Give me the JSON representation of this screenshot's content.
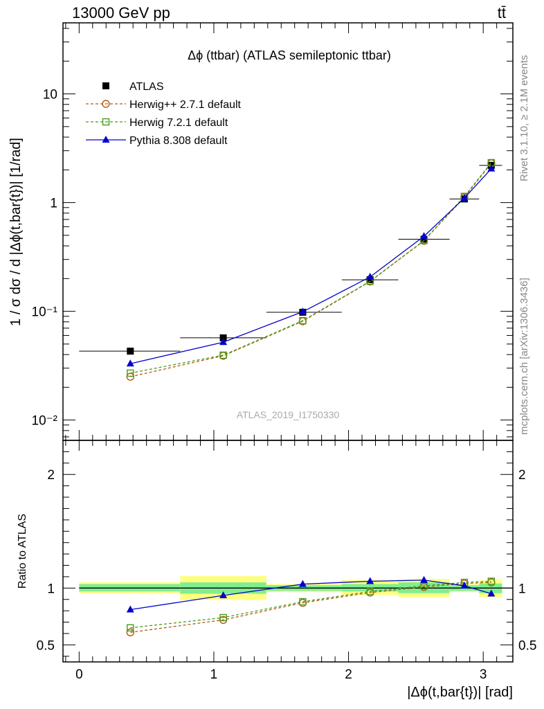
{
  "header": {
    "left": "13000 GeV pp",
    "right": "tt̄"
  },
  "side_text": {
    "rivet": "Rivet 3.1.10, ≥ 2.1M events",
    "site": "mcplots.cern.ch [arXiv:1306.3436]"
  },
  "chart_data": [
    {
      "type": "scatter",
      "title": "Δϕ (ttbar) (ATLAS semileptonic ttbar)",
      "watermark": "ATLAS_2019_I1750330",
      "xlabel": "|Δϕ(t,bar{t})| [rad]",
      "ylabel": "1 / σ dσ / d |Δϕ(t,bar{t})| [1/rad]",
      "yscale": "log",
      "xlim": [
        -0.12,
        3.22
      ],
      "ylim": [
        0.0065,
        45
      ],
      "x_ticks": [
        0,
        1,
        2,
        3
      ],
      "y_ticks": [
        {
          "value": 0.01,
          "label": "10⁻²"
        },
        {
          "value": 0.1,
          "label": "10⁻¹"
        },
        {
          "value": 1,
          "label": "1"
        },
        {
          "value": 10,
          "label": "10"
        }
      ],
      "legend_position": "top-left",
      "x": [
        0.38,
        1.07,
        1.66,
        2.16,
        2.56,
        2.86,
        3.06
      ],
      "series": [
        {
          "name": "ATLAS",
          "color": "#000000",
          "marker": "filled-square",
          "values": [
            0.043,
            0.057,
            0.098,
            0.195,
            0.46,
            1.08,
            2.2
          ],
          "xerr": [
            [
              0,
              0.75
            ],
            [
              0.75,
              1.39
            ],
            [
              1.39,
              1.95
            ],
            [
              1.95,
              2.37
            ],
            [
              2.37,
              2.75
            ],
            [
              2.75,
              2.97
            ],
            [
              2.97,
              3.14
            ]
          ]
        },
        {
          "name": "Herwig++ 2.7.1 default",
          "color": "#b05a10",
          "marker": "open-circle",
          "dash": true,
          "values": [
            0.025,
            0.039,
            0.081,
            0.188,
            0.445,
            1.12,
            2.3
          ]
        },
        {
          "name": "Herwig 7.2.1 default",
          "color": "#4a9a18",
          "marker": "open-square",
          "dash": true,
          "values": [
            0.027,
            0.0395,
            0.082,
            0.189,
            0.448,
            1.14,
            2.33
          ]
        },
        {
          "name": "Pythia 8.308 default",
          "color": "#0000cc",
          "marker": "filled-triangle",
          "values": [
            0.033,
            0.052,
            0.099,
            0.207,
            0.49,
            1.1,
            2.05
          ]
        }
      ]
    },
    {
      "type": "line",
      "ylabel": "Ratio to ATLAS",
      "xlim": [
        -0.12,
        3.22
      ],
      "ylim": [
        0.35,
        2.3
      ],
      "x_ticks": [
        0,
        1,
        2,
        3
      ],
      "y_ticks": [
        {
          "value": 0.5,
          "label": "0.5"
        },
        {
          "value": 1,
          "label": "1"
        },
        {
          "value": 2,
          "label": "2"
        }
      ],
      "bands": [
        {
          "x": [
            0,
            0.75
          ],
          "inner": [
            0.97,
            1.035
          ],
          "outer": [
            0.955,
            1.05
          ]
        },
        {
          "x": [
            0.75,
            1.39
          ],
          "inner": [
            0.95,
            1.05
          ],
          "outer": [
            0.895,
            1.105
          ]
        },
        {
          "x": [
            1.39,
            1.95
          ],
          "inner": [
            0.975,
            1.025
          ],
          "outer": [
            0.965,
            1.035
          ]
        },
        {
          "x": [
            1.95,
            2.37
          ],
          "inner": [
            0.97,
            1.035
          ],
          "outer": [
            0.94,
            1.07
          ]
        },
        {
          "x": [
            2.37,
            2.75
          ],
          "inner": [
            0.955,
            1.05
          ],
          "outer": [
            0.92,
            1.08
          ]
        },
        {
          "x": [
            2.75,
            2.97
          ],
          "inner": [
            0.975,
            1.025
          ],
          "outer": [
            0.965,
            1.035
          ]
        },
        {
          "x": [
            2.97,
            3.14
          ],
          "inner": [
            0.955,
            1.04
          ],
          "outer": [
            0.92,
            1.07
          ]
        }
      ],
      "x": [
        0.38,
        1.07,
        1.66,
        2.16,
        2.56,
        2.86,
        3.06
      ],
      "series": [
        {
          "name": "Herwig++ 2.7.1 default",
          "color": "#b05a10",
          "marker": "open-circle",
          "dash": true,
          "values": [
            0.61,
            0.72,
            0.87,
            0.96,
            1.01,
            1.04,
            1.05
          ]
        },
        {
          "name": "Herwig 7.2.1 default",
          "color": "#4a9a18",
          "marker": "open-square",
          "dash": true,
          "values": [
            0.65,
            0.74,
            0.88,
            0.97,
            1.02,
            1.05,
            1.06
          ]
        },
        {
          "name": "Pythia 8.308 default",
          "color": "#0000cc",
          "marker": "filled-triangle",
          "values": [
            0.81,
            0.935,
            1.035,
            1.06,
            1.07,
            1.02,
            0.95
          ]
        }
      ]
    }
  ]
}
